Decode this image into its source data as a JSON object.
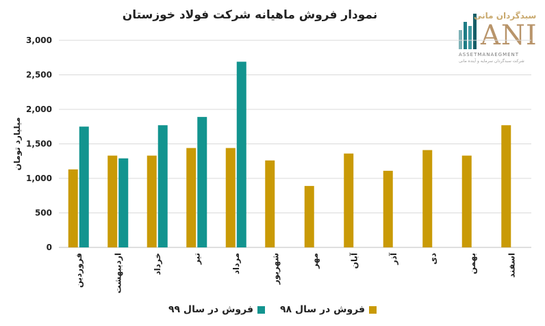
{
  "colors": {
    "series98": "#c99a06",
    "series99": "#12948f",
    "grid": "#d9d9d9",
    "axis": "#bfbfbf"
  },
  "logo": {
    "brand": "سبدگردان مانی",
    "letters": "ANI",
    "sub": "ASSETMANAEGMENT",
    "tag": "شرکت سبدگردان سرمایه و آینده مانی"
  },
  "chart_data": {
    "type": "bar",
    "title": "نمودار فروش ماهیانه شرکت فولاد خوزستان",
    "xlabel": "",
    "ylabel": "میلیارد تومان",
    "ylim": [
      0,
      3000
    ],
    "yticks": [
      "0",
      "500",
      "1,000",
      "1,500",
      "2,000",
      "2,500",
      "3,000"
    ],
    "grid": true,
    "legend_position": "bottom",
    "categories": [
      "فروردین",
      "اردیبهشت",
      "خرداد",
      "تیر",
      "مرداد",
      "شهریور",
      "مهر",
      "آبان",
      "آذر",
      "دی",
      "بهمن",
      "اسفند"
    ],
    "series": [
      {
        "name": "فروش در سال ۹۸",
        "values": [
          1130,
          1330,
          1330,
          1440,
          1440,
          1260,
          890,
          1360,
          1110,
          1410,
          1330,
          1770
        ]
      },
      {
        "name": "فروش در سال ۹۹",
        "values": [
          1750,
          1290,
          1770,
          1890,
          2690,
          null,
          null,
          null,
          null,
          null,
          null,
          null
        ]
      }
    ]
  }
}
